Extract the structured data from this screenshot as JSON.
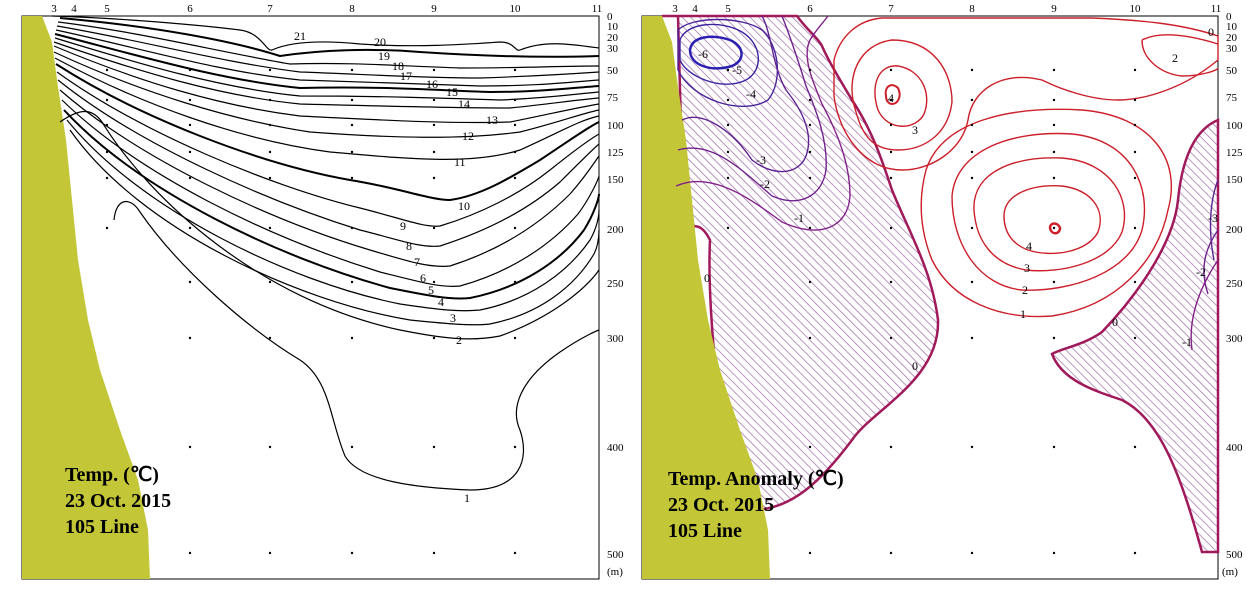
{
  "colors": {
    "land": "#c3c637",
    "frame": "#000000",
    "contour_black": "#000000",
    "anomaly_positive": "#cc1f2a",
    "anomaly_zero": "#a0195a",
    "anomaly_negative": "#3a22a0",
    "hatch": "#9c6aa4"
  },
  "chart_data": [
    {
      "type": "contour",
      "caption": {
        "line1": "Temp. (℃)",
        "line2": "23 Oct. 2015",
        "line3": "105 Line"
      },
      "station_labels": [
        "3",
        "4",
        "5",
        "6",
        "7",
        "8",
        "9",
        "10",
        "11"
      ],
      "depth_ticks": [
        "0",
        "10",
        "20",
        "30",
        "50",
        "75",
        "100",
        "125",
        "150",
        "200",
        "250",
        "300",
        "400",
        "500"
      ],
      "depth_unit": "(m)",
      "contour_labels": [
        "21",
        "20",
        "19",
        "18",
        "17",
        "16",
        "15",
        "14",
        "13",
        "12",
        "11",
        "10",
        "9",
        "8",
        "7",
        "6",
        "5",
        "4",
        "3",
        "2",
        "1"
      ],
      "levels": [
        1,
        2,
        3,
        4,
        5,
        6,
        7,
        8,
        9,
        10,
        11,
        12,
        13,
        14,
        15,
        16,
        17,
        18,
        19,
        20,
        21
      ],
      "ylim": [
        500,
        0
      ]
    },
    {
      "type": "contour",
      "caption": {
        "line1": "Temp. Anomaly (℃)",
        "line2": "23 Oct. 2015",
        "line3": "105 Line"
      },
      "station_labels": [
        "3",
        "4",
        "5",
        "6",
        "7",
        "8",
        "9",
        "10",
        "11"
      ],
      "depth_ticks": [
        "0",
        "10",
        "20",
        "30",
        "50",
        "75",
        "100",
        "125",
        "150",
        "200",
        "250",
        "300",
        "400",
        "500"
      ],
      "depth_unit": "(m)",
      "contour_labels": [
        "-6",
        "-5",
        "-4",
        "-3",
        "-2",
        "-1",
        "0",
        "0",
        "0",
        "0",
        "-1",
        "-2",
        "-3",
        "1",
        "2",
        "3",
        "4",
        "4",
        "3",
        "2"
      ],
      "levels": [
        -6,
        -5,
        -4,
        -3,
        -2,
        -1,
        0,
        1,
        2,
        3,
        4,
        5
      ],
      "negative_region": "hatched",
      "ylim": [
        500,
        0
      ]
    }
  ]
}
